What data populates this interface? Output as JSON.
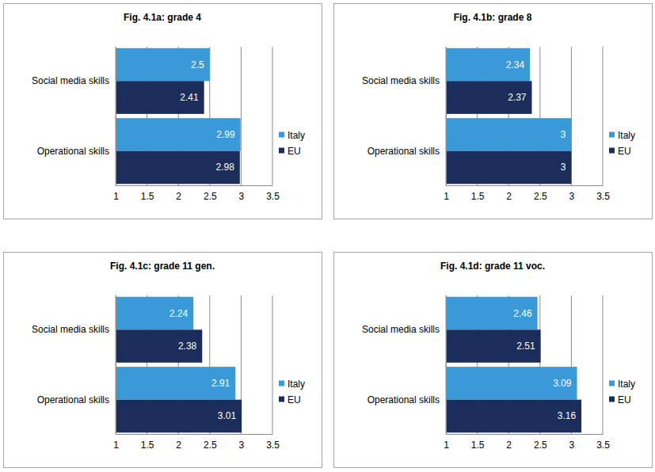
{
  "chart_data": [
    {
      "type": "bar",
      "title": "Fig. 4.1a: grade 4",
      "orientation": "horizontal",
      "categories": [
        "Social media skills",
        "Operational skills"
      ],
      "series": [
        {
          "name": "Italy",
          "color": "#3a9ad8",
          "values": [
            2.5,
            2.99
          ]
        },
        {
          "name": "EU",
          "color": "#1b2d5a",
          "values": [
            2.41,
            2.98
          ]
        }
      ],
      "xlim": [
        1,
        3.5
      ],
      "xticks": [
        1,
        1.5,
        2,
        2.5,
        3,
        3.5
      ],
      "grid": true,
      "legend": "right",
      "data_labels": true
    },
    {
      "type": "bar",
      "title": "Fig. 4.1b: grade 8",
      "orientation": "horizontal",
      "categories": [
        "Social media skills",
        "Operational skills"
      ],
      "series": [
        {
          "name": "Italy",
          "color": "#3a9ad8",
          "values": [
            2.34,
            3
          ]
        },
        {
          "name": "EU",
          "color": "#1b2d5a",
          "values": [
            2.37,
            3
          ]
        }
      ],
      "xlim": [
        1,
        3.5
      ],
      "xticks": [
        1,
        1.5,
        2,
        2.5,
        3,
        3.5
      ],
      "grid": true,
      "legend": "right",
      "data_labels": true
    },
    {
      "type": "bar",
      "title": "Fig. 4.1c: grade 11 gen.",
      "orientation": "horizontal",
      "categories": [
        "Social media skills",
        "Operational skills"
      ],
      "series": [
        {
          "name": "Italy",
          "color": "#3a9ad8",
          "values": [
            2.24,
            2.91
          ]
        },
        {
          "name": "EU",
          "color": "#1b2d5a",
          "values": [
            2.38,
            3.01
          ]
        }
      ],
      "xlim": [
        1,
        3.5
      ],
      "xticks": [
        1,
        1.5,
        2,
        2.5,
        3,
        3.5
      ],
      "grid": true,
      "legend": "right",
      "data_labels": true
    },
    {
      "type": "bar",
      "title": "Fig. 4.1d: grade 11 voc.",
      "orientation": "horizontal",
      "categories": [
        "Social media skills",
        "Operational skills"
      ],
      "series": [
        {
          "name": "Italy",
          "color": "#3a9ad8",
          "values": [
            2.46,
            3.09
          ]
        },
        {
          "name": "EU",
          "color": "#1b2d5a",
          "values": [
            2.51,
            3.16
          ]
        }
      ],
      "xlim": [
        1,
        3.5
      ],
      "xticks": [
        1,
        1.5,
        2,
        2.5,
        3,
        3.5
      ],
      "grid": true,
      "legend": "right",
      "data_labels": true
    }
  ]
}
